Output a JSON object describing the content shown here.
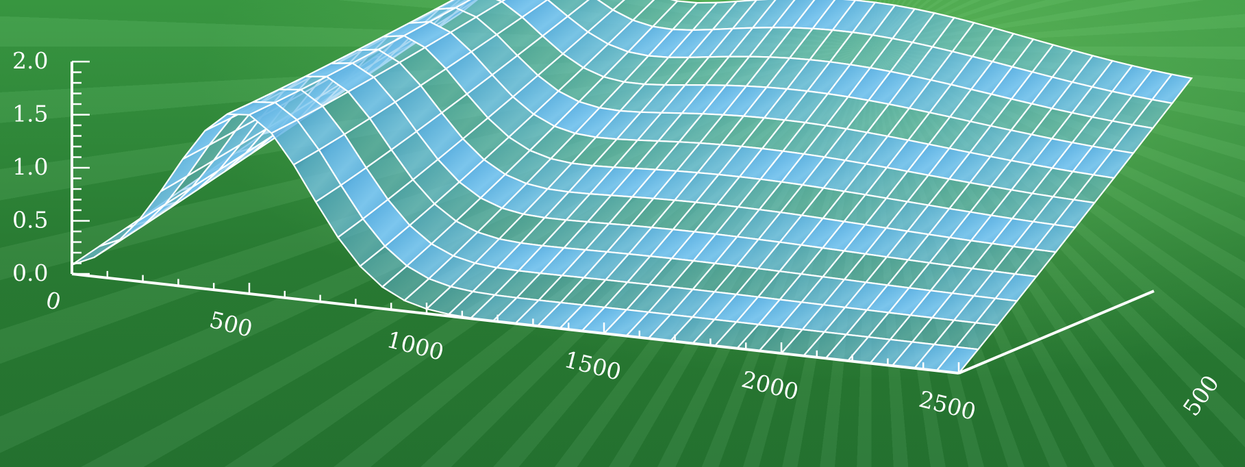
{
  "chart_data": {
    "type": "surface",
    "title": "",
    "xlabel": "",
    "ylabel": "",
    "zlabel": "",
    "z_ticks": [
      "0.0",
      "0.5",
      "1.0",
      "1.5",
      "2.0"
    ],
    "x_ticks": [
      "0",
      "500",
      "1000",
      "1500",
      "2000",
      "2500"
    ],
    "y_ticks": [
      "500"
    ],
    "zlim": [
      0,
      2
    ],
    "xlim": [
      0,
      2500
    ],
    "ylim": [
      0,
      600
    ],
    "grid": false,
    "surface": {
      "description_values": "z(x,y) wave with a front peak ~1.7 near x≈500 and a broad rear ridge ~2.0",
      "peak_front": 1.7,
      "peak_rear": 2.0
    },
    "colors": {
      "background": "#2f8a3a",
      "surface_light": "#8fd0f2",
      "surface_dark": "#2f7fb5",
      "mesh": "#ffffff",
      "axis": "#ffffff"
    }
  }
}
